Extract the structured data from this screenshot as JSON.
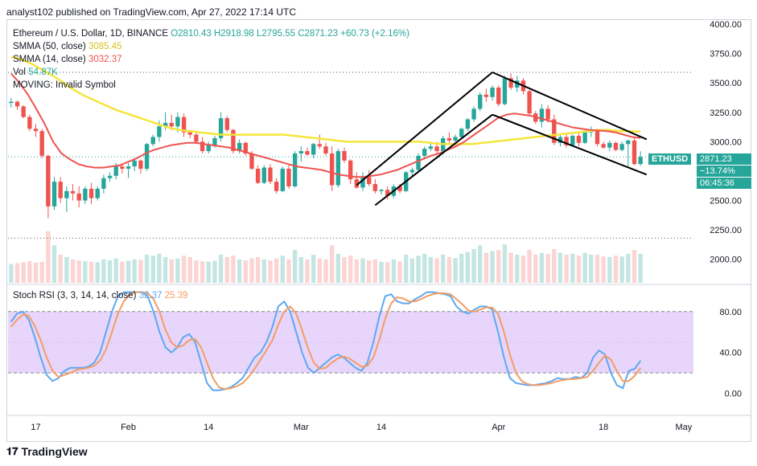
{
  "header": {
    "published": "analyst102 published on TradingView.com, Apr 27, 2022 17:14 UTC"
  },
  "legend": {
    "symbol": "Ethereum / U.S. Dollar, 1D, BINANCE",
    "o": "O2810.43",
    "h": "H2918.98",
    "l": "L2795.55",
    "c": "C2871.23",
    "change": "+60.73 (+2.16%)",
    "smma50_label": "SMMA (50, close)",
    "smma50_value": "3085.45",
    "smma14_label": "SMMA (14, close)",
    "smma14_value": "3032.37",
    "vol_label": "Vol",
    "vol_value": "54.87K",
    "moving_label": "MOVING: Invalid Symbol"
  },
  "stoch_legend": {
    "label": "Stoch RSI (3, 3, 14, 14, close)",
    "k_value": "32.37",
    "d_value": "25.39"
  },
  "price_badge": {
    "symbol": "ETHUSD",
    "price": "2871.23",
    "change": "−13.74%",
    "countdown": "06:45:36"
  },
  "footer": {
    "brand": "TradingView"
  },
  "colors": {
    "up": "#26a69a",
    "down": "#ef5350",
    "smma50": "#f5e53b",
    "smma14": "#ef5350",
    "stoch_k": "#5ea8ef",
    "stoch_d": "#f29d66",
    "stoch_band": "#e8d5fb",
    "channel": "#000000"
  },
  "chart_data": [
    {
      "type": "candlestick",
      "title": "Ethereum / U.S. Dollar, 1D, BINANCE",
      "y_ticks": [
        "4000.00",
        "3750.00",
        "3500.00",
        "3250.00",
        "3000.00",
        "2750.00",
        "2500.00",
        "2250.00",
        "2000.00"
      ],
      "ylim": [
        1800,
        4000
      ],
      "x_ticks": [
        "17",
        "Feb",
        "14",
        "Mar",
        "14",
        "Apr",
        "18",
        "May"
      ],
      "candles_ohlc": [
        [
          3330,
          3370,
          3290,
          3340
        ],
        [
          3340,
          3350,
          3270,
          3300
        ],
        [
          3300,
          3310,
          3200,
          3210
        ],
        [
          3210,
          3230,
          3090,
          3110
        ],
        [
          3110,
          3150,
          3040,
          3090
        ],
        [
          3090,
          3110,
          2860,
          2880
        ],
        [
          2880,
          2890,
          2350,
          2450
        ],
        [
          2450,
          2700,
          2420,
          2660
        ],
        [
          2660,
          2700,
          2480,
          2520
        ],
        [
          2520,
          2620,
          2400,
          2580
        ],
        [
          2580,
          2640,
          2500,
          2560
        ],
        [
          2560,
          2620,
          2440,
          2500
        ],
        [
          2500,
          2620,
          2470,
          2600
        ],
        [
          2600,
          2650,
          2470,
          2520
        ],
        [
          2520,
          2620,
          2500,
          2600
        ],
        [
          2600,
          2720,
          2560,
          2690
        ],
        [
          2690,
          2740,
          2660,
          2710
        ],
        [
          2710,
          2820,
          2680,
          2790
        ],
        [
          2790,
          2800,
          2730,
          2770
        ],
        [
          2770,
          2820,
          2690,
          2790
        ],
        [
          2790,
          2860,
          2750,
          2840
        ],
        [
          2840,
          2850,
          2730,
          2770
        ],
        [
          2770,
          2990,
          2750,
          2980
        ],
        [
          2980,
          3060,
          2960,
          3040
        ],
        [
          3040,
          3180,
          3000,
          3130
        ],
        [
          3130,
          3250,
          3100,
          3160
        ],
        [
          3160,
          3230,
          3100,
          3130
        ],
        [
          3130,
          3250,
          3080,
          3210
        ],
        [
          3210,
          3240,
          3040,
          3080
        ],
        [
          3080,
          3100,
          3030,
          3060
        ],
        [
          3060,
          3080,
          2980,
          3000
        ],
        [
          3000,
          3040,
          2900,
          2920
        ],
        [
          2920,
          3000,
          2900,
          2970
        ],
        [
          2970,
          3050,
          2950,
          3030
        ],
        [
          3030,
          3250,
          3000,
          3200
        ],
        [
          3200,
          3220,
          3080,
          3100
        ],
        [
          3100,
          3110,
          2900,
          2920
        ],
        [
          2920,
          3020,
          2900,
          2990
        ],
        [
          2990,
          3000,
          2880,
          2900
        ],
        [
          2900,
          2920,
          2760,
          2770
        ],
        [
          2770,
          2800,
          2640,
          2650
        ],
        [
          2650,
          2800,
          2640,
          2780
        ],
        [
          2780,
          2810,
          2640,
          2660
        ],
        [
          2660,
          2690,
          2560,
          2580
        ],
        [
          2580,
          2790,
          2570,
          2770
        ],
        [
          2770,
          2800,
          2600,
          2620
        ],
        [
          2620,
          2920,
          2610,
          2900
        ],
        [
          2900,
          2960,
          2830,
          2920
        ],
        [
          2920,
          2950,
          2880,
          2890
        ],
        [
          2890,
          2990,
          2860,
          2980
        ],
        [
          2980,
          3060,
          2940,
          2960
        ],
        [
          2960,
          2990,
          2880,
          2900
        ],
        [
          2900,
          2960,
          2580,
          2630
        ],
        [
          2630,
          2940,
          2610,
          2920
        ],
        [
          2920,
          2950,
          2820,
          2840
        ],
        [
          2840,
          2850,
          2640,
          2680
        ],
        [
          2680,
          2740,
          2600,
          2610
        ],
        [
          2610,
          2740,
          2580,
          2700
        ],
        [
          2700,
          2760,
          2620,
          2640
        ],
        [
          2640,
          2680,
          2560,
          2580
        ],
        [
          2580,
          2600,
          2550,
          2590
        ],
        [
          2590,
          2620,
          2510,
          2540
        ],
        [
          2540,
          2640,
          2520,
          2620
        ],
        [
          2620,
          2640,
          2560,
          2580
        ],
        [
          2580,
          2750,
          2570,
          2740
        ],
        [
          2740,
          2780,
          2700,
          2760
        ],
        [
          2760,
          2900,
          2740,
          2880
        ],
        [
          2880,
          2960,
          2860,
          2940
        ],
        [
          2940,
          3000,
          2920,
          2960
        ],
        [
          2960,
          3000,
          2890,
          2920
        ],
        [
          2920,
          3050,
          2900,
          3030
        ],
        [
          3030,
          3080,
          2990,
          3010
        ],
        [
          3010,
          3060,
          2960,
          3040
        ],
        [
          3040,
          3120,
          3020,
          3110
        ],
        [
          3110,
          3200,
          3090,
          3190
        ],
        [
          3190,
          3300,
          3170,
          3280
        ],
        [
          3280,
          3420,
          3260,
          3400
        ],
        [
          3400,
          3450,
          3340,
          3380
        ],
        [
          3380,
          3480,
          3350,
          3460
        ],
        [
          3460,
          3480,
          3300,
          3320
        ],
        [
          3320,
          3560,
          3310,
          3540
        ],
        [
          3540,
          3580,
          3440,
          3460
        ],
        [
          3460,
          3560,
          3420,
          3520
        ],
        [
          3520,
          3540,
          3400,
          3430
        ],
        [
          3430,
          3440,
          3220,
          3240
        ],
        [
          3240,
          3260,
          3150,
          3170
        ],
        [
          3170,
          3320,
          3120,
          3280
        ],
        [
          3280,
          3310,
          3160,
          3190
        ],
        [
          3190,
          3230,
          2970,
          2990
        ],
        [
          2990,
          3070,
          2960,
          3040
        ],
        [
          3040,
          3070,
          2950,
          2970
        ],
        [
          2970,
          3060,
          2960,
          3050
        ],
        [
          3050,
          3070,
          2960,
          2990
        ],
        [
          2990,
          3090,
          2980,
          3080
        ],
        [
          3080,
          3130,
          3040,
          3100
        ],
        [
          3100,
          3110,
          2960,
          2980
        ],
        [
          2980,
          3000,
          2940,
          2950
        ],
        [
          2950,
          3010,
          2920,
          2990
        ],
        [
          2990,
          3000,
          2920,
          2930
        ],
        [
          2930,
          3000,
          2920,
          2980
        ],
        [
          2980,
          3020,
          2790,
          3010
        ],
        [
          3010,
          3030,
          2800,
          2810
        ],
        [
          2810,
          2919,
          2796,
          2871
        ]
      ],
      "smma50": [
        3720,
        3700,
        3660,
        3610,
        3560,
        3500,
        3440,
        3390,
        3350,
        3310,
        3270,
        3240,
        3210,
        3180,
        3150,
        3120,
        3100,
        3090,
        3080,
        3070,
        3060,
        3060,
        3060,
        3060,
        3060,
        3060,
        3060,
        3050,
        3040,
        3030,
        3020,
        3010,
        3000,
        3000,
        3000,
        3000,
        3000,
        3000,
        3000,
        3000,
        2990,
        2980,
        2980,
        2980,
        2980,
        2990,
        3000,
        3010,
        3020,
        3030,
        3040,
        3050,
        3060,
        3070,
        3080,
        3090,
        3100,
        3100,
        3090,
        3090,
        3085
      ],
      "smma14": [
        3580,
        3500,
        3400,
        3280,
        3150,
        3000,
        2900,
        2850,
        2810,
        2790,
        2780,
        2780,
        2790,
        2800,
        2830,
        2860,
        2900,
        2930,
        2950,
        2970,
        2980,
        2990,
        2990,
        2980,
        2970,
        2960,
        2950,
        2930,
        2910,
        2890,
        2870,
        2850,
        2830,
        2810,
        2790,
        2780,
        2770,
        2760,
        2740,
        2720,
        2710,
        2700,
        2700,
        2710,
        2720,
        2740,
        2760,
        2790,
        2820,
        2850,
        2880,
        2900,
        2930,
        2960,
        3000,
        3050,
        3100,
        3150,
        3200,
        3230,
        3240,
        3230,
        3220,
        3200,
        3180,
        3160,
        3140,
        3120,
        3110,
        3100,
        3095,
        3090,
        3080,
        3060,
        3040,
        3032
      ],
      "descending_channel": [
        {
          "from": [
            "2022-04-01",
            3590
          ],
          "to": [
            "2022-04-26",
            3020
          ]
        },
        {
          "from": [
            "2022-04-01",
            3230
          ],
          "to": [
            "2022-04-26",
            2720
          ]
        }
      ],
      "ascending_channel": [
        {
          "from": [
            "2022-03-10",
            2630
          ],
          "to": [
            "2022-04-01",
            3590
          ]
        },
        {
          "from": [
            "2022-03-13",
            2460
          ],
          "to": [
            "2022-04-01",
            3230
          ]
        }
      ]
    },
    {
      "type": "bar",
      "title": "Vol",
      "values": [
        40,
        42,
        44,
        46,
        43,
        45,
        110,
        80,
        60,
        55,
        50,
        48,
        46,
        45,
        44,
        50,
        48,
        52,
        45,
        47,
        50,
        49,
        60,
        58,
        62,
        55,
        50,
        52,
        58,
        55,
        48,
        46,
        45,
        47,
        60,
        55,
        58,
        50,
        48,
        52,
        55,
        50,
        48,
        52,
        58,
        50,
        70,
        55,
        50,
        60,
        52,
        50,
        80,
        62,
        55,
        58,
        50,
        52,
        48,
        50,
        45,
        44,
        50,
        46,
        60,
        52,
        58,
        62,
        55,
        52,
        60,
        55,
        53,
        62,
        66,
        72,
        80,
        64,
        68,
        70,
        82,
        64,
        60,
        58,
        70,
        60,
        64,
        62,
        72,
        64,
        60,
        62,
        58,
        64,
        60,
        60,
        56,
        55,
        58,
        56,
        62,
        70,
        62,
        50
      ]
    },
    {
      "type": "line",
      "title": "Stoch RSI (3, 3, 14, 14, close)",
      "y_ticks": [
        "80.00",
        "40.00",
        "0.00"
      ],
      "ylim": [
        -20,
        105
      ],
      "bands": [
        20,
        80
      ],
      "series": [
        {
          "name": "K",
          "values": [
            70,
            78,
            80,
            72,
            55,
            35,
            18,
            12,
            15,
            22,
            25,
            25,
            25,
            26,
            30,
            40,
            60,
            80,
            95,
            99,
            99,
            99,
            99,
            95,
            80,
            60,
            45,
            40,
            45,
            55,
            58,
            50,
            30,
            10,
            3,
            3,
            4,
            6,
            10,
            15,
            25,
            35,
            40,
            50,
            65,
            85,
            90,
            80,
            60,
            40,
            25,
            20,
            25,
            30,
            35,
            38,
            35,
            30,
            25,
            22,
            30,
            50,
            75,
            95,
            97,
            90,
            88,
            88,
            92,
            95,
            99,
            99,
            98,
            97,
            95,
            85,
            80,
            78,
            82,
            85,
            85,
            82,
            60,
            35,
            15,
            10,
            9,
            8,
            8,
            9,
            10,
            12,
            15,
            14,
            14,
            16,
            15,
            20,
            35,
            42,
            38,
            20,
            8,
            5,
            22,
            24,
            32
          ]
        },
        {
          "name": "D",
          "values": [
            65,
            72,
            77,
            76,
            66,
            52,
            35,
            22,
            16,
            18,
            20,
            23,
            24,
            25,
            27,
            32,
            43,
            60,
            78,
            90,
            97,
            99,
            99,
            98,
            92,
            80,
            62,
            50,
            45,
            47,
            52,
            53,
            45,
            30,
            15,
            6,
            4,
            5,
            7,
            10,
            16,
            24,
            33,
            42,
            52,
            67,
            80,
            85,
            78,
            62,
            44,
            30,
            24,
            25,
            30,
            34,
            36,
            34,
            30,
            26,
            27,
            35,
            52,
            73,
            88,
            94,
            93,
            90,
            90,
            92,
            95,
            97,
            98,
            98,
            97,
            92,
            87,
            81,
            80,
            82,
            84,
            84,
            78,
            60,
            38,
            20,
            12,
            9,
            8,
            8,
            9,
            10,
            12,
            13,
            14,
            14,
            15,
            16,
            22,
            30,
            37,
            33,
            22,
            12,
            12,
            17,
            25
          ]
        }
      ]
    }
  ]
}
